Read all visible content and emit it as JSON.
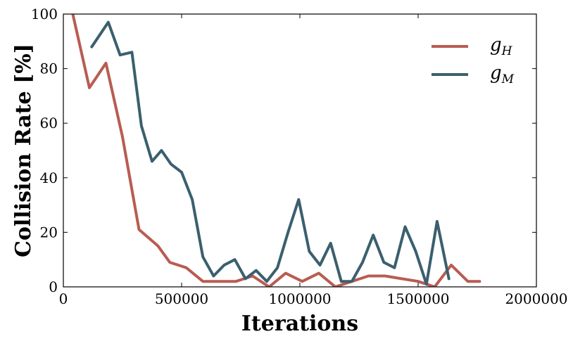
{
  "chart_data": {
    "type": "line",
    "xlabel": "Iterations",
    "ylabel": "Collision Rate [%]",
    "xlim": [
      0,
      2000000
    ],
    "ylim": [
      0,
      100
    ],
    "x_ticks": [
      0,
      500000,
      1000000,
      1500000,
      2000000
    ],
    "x_tick_labels": [
      "0",
      "500000",
      "1000000",
      "1500000",
      "2000000"
    ],
    "y_ticks": [
      0,
      20,
      40,
      60,
      80,
      100
    ],
    "y_tick_labels": [
      "0",
      "20",
      "40",
      "60",
      "80",
      "100"
    ],
    "grid": false,
    "legend_position": "top-right",
    "series": [
      {
        "name": "g",
        "name_subscript": "H",
        "color": "#b85c52",
        "points": [
          [
            40000,
            100
          ],
          [
            110000,
            73
          ],
          [
            180000,
            82
          ],
          [
            250000,
            55
          ],
          [
            320000,
            21
          ],
          [
            400000,
            15
          ],
          [
            450000,
            9
          ],
          [
            520000,
            7
          ],
          [
            590000,
            2
          ],
          [
            660000,
            2
          ],
          [
            730000,
            2
          ],
          [
            800000,
            4
          ],
          [
            870000,
            0
          ],
          [
            940000,
            5
          ],
          [
            1010000,
            2
          ],
          [
            1080000,
            5
          ],
          [
            1150000,
            0
          ],
          [
            1220000,
            2
          ],
          [
            1290000,
            4
          ],
          [
            1360000,
            4
          ],
          [
            1430000,
            3
          ],
          [
            1500000,
            2
          ],
          [
            1570000,
            0
          ],
          [
            1640000,
            8
          ],
          [
            1710000,
            2
          ],
          [
            1760000,
            2
          ]
        ]
      },
      {
        "name": "g",
        "name_subscript": "M",
        "color": "#3b5f6e",
        "points": [
          [
            120000,
            88
          ],
          [
            190000,
            97
          ],
          [
            240000,
            85
          ],
          [
            290000,
            86
          ],
          [
            330000,
            59
          ],
          [
            375000,
            46
          ],
          [
            415000,
            50
          ],
          [
            455000,
            45
          ],
          [
            500000,
            42
          ],
          [
            545000,
            32
          ],
          [
            590000,
            11
          ],
          [
            635000,
            4
          ],
          [
            680000,
            8
          ],
          [
            725000,
            10
          ],
          [
            770000,
            3
          ],
          [
            815000,
            6
          ],
          [
            860000,
            2
          ],
          [
            905000,
            7
          ],
          [
            950000,
            20
          ],
          [
            995000,
            32
          ],
          [
            1040000,
            13
          ],
          [
            1085000,
            8
          ],
          [
            1130000,
            16
          ],
          [
            1175000,
            2
          ],
          [
            1220000,
            2
          ],
          [
            1265000,
            9
          ],
          [
            1310000,
            19
          ],
          [
            1355000,
            9
          ],
          [
            1400000,
            7
          ],
          [
            1445000,
            22
          ],
          [
            1490000,
            13
          ],
          [
            1535000,
            1
          ],
          [
            1580000,
            24
          ],
          [
            1630000,
            3
          ]
        ]
      }
    ]
  }
}
